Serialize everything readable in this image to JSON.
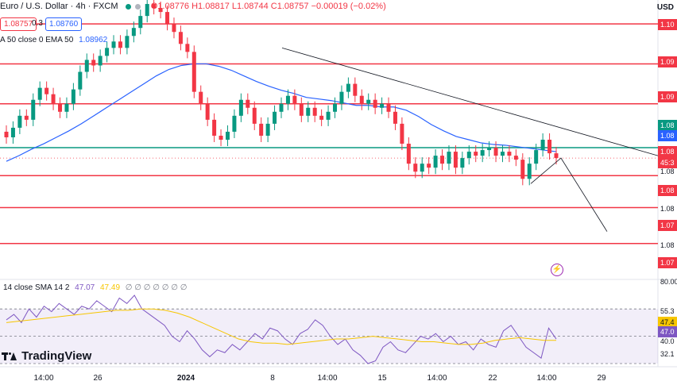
{
  "header": {
    "symbol": "Euro / U.S. Dollar · 4h · FXCM",
    "ohlc": "O1.08776 H1.08817 L1.08744 C1.08757 −0.00019 (−0.02%)",
    "bid": "1.08757",
    "spread": "0.3",
    "ask": "1.08760",
    "currency": "USD"
  },
  "ema_label": {
    "name": "A 50 close 0 EMA 50",
    "value": "1.08962"
  },
  "rsi_label": {
    "name": "14 close SMA 14 2",
    "rsi": "47.07",
    "sma": "47.49",
    "rest": "∅ ∅ ∅ ∅ ∅ ∅ ∅"
  },
  "price_axis": {
    "tags": [
      {
        "text": "1.10",
        "color": "#f23645",
        "line": true
      },
      {
        "text": "1.09",
        "color": "#f23645",
        "line": true
      },
      {
        "text": "1.09",
        "color": "#f23645",
        "line": true
      },
      {
        "text": "1.08",
        "color": "#089981",
        "line": true
      },
      {
        "text": "1.08",
        "color": "#2962ff",
        "line": false
      },
      {
        "text": "1.08",
        "color": "#f23645",
        "line": false
      },
      {
        "text": "1.08",
        "color": "#f23645",
        "line": true
      },
      {
        "text": "1.07",
        "color": "#f23645",
        "line": true
      },
      {
        "text": "1.07",
        "color": "#f23645",
        "line": true
      }
    ],
    "countdown": "45:3",
    "plain_ticks": [
      "1.08",
      "1.08",
      "1.08"
    ]
  },
  "rsi_axis": {
    "ticks": [
      "80.00",
      "55.3",
      "40.0",
      "32.1"
    ],
    "tags": [
      {
        "text": "47.4",
        "color": "#f7c600"
      },
      {
        "text": "47.0",
        "color": "#7e57c2"
      }
    ]
  },
  "x_axis": [
    "14:00",
    "26",
    "2024",
    "8",
    "14:00",
    "15",
    "14:00",
    "22",
    "14:00",
    "29"
  ],
  "brand": "TradingView",
  "colors": {
    "up": "#089981",
    "down": "#f23645",
    "ema": "#2962ff",
    "support": "#089981",
    "resistance": "#f23645",
    "rsi": "#7e57c2",
    "rsi_sma": "#f7c600"
  },
  "icons": [
    "lightning-icon",
    "tradingview-logo-icon"
  ],
  "chart_data": {
    "type": "candlestick",
    "title": "Euro / U.S. Dollar · 4h · FXCM",
    "ylim": [
      1.07,
      1.105
    ],
    "horizontal_levels": [
      1.102,
      1.097,
      1.092,
      1.0865,
      1.083,
      1.079,
      1.0745
    ],
    "green_level": 1.0865,
    "trendline": [
      [
        0.0,
        1.099
      ],
      [
        1.0,
        1.0855
      ]
    ],
    "forecast": [
      [
        0,
        1.082
      ],
      [
        1,
        1.0852
      ],
      [
        2,
        1.076
      ]
    ],
    "candles": [
      [
        1.0885,
        1.0878
      ],
      [
        1.0878,
        1.089
      ],
      [
        1.089,
        1.0905
      ],
      [
        1.0905,
        1.09
      ],
      [
        1.09,
        1.0925
      ],
      [
        1.0925,
        1.094
      ],
      [
        1.094,
        1.0932
      ],
      [
        1.0932,
        1.092
      ],
      [
        1.092,
        1.091
      ],
      [
        1.091,
        1.092
      ],
      [
        1.092,
        1.0938
      ],
      [
        1.0938,
        1.096
      ],
      [
        1.096,
        1.0975
      ],
      [
        1.0975,
        1.0968
      ],
      [
        1.0968,
        1.098
      ],
      [
        1.098,
        1.099
      ],
      [
        1.099,
        1.0998
      ],
      [
        1.0998,
        1.099
      ],
      [
        1.099,
        1.1005
      ],
      [
        1.1005,
        1.1015
      ],
      [
        1.1015,
        1.103
      ],
      [
        1.103,
        1.1045
      ],
      [
        1.1045,
        1.104
      ],
      [
        1.104,
        1.1035
      ],
      [
        1.1035,
        1.102
      ],
      [
        1.102,
        1.101
      ],
      [
        1.101,
        1.0995
      ],
      [
        1.0995,
        1.0985
      ],
      [
        1.0985,
        1.0935
      ],
      [
        1.0935,
        1.092
      ],
      [
        1.092,
        1.09
      ],
      [
        1.09,
        1.088
      ],
      [
        1.088,
        1.0875
      ],
      [
        1.0875,
        1.0885
      ],
      [
        1.0885,
        1.0905
      ],
      [
        1.0905,
        1.0925
      ],
      [
        1.0925,
        1.0915
      ],
      [
        1.0915,
        1.0895
      ],
      [
        1.0895,
        1.088
      ],
      [
        1.088,
        1.0895
      ],
      [
        1.0895,
        1.091
      ],
      [
        1.091,
        1.092
      ],
      [
        1.092,
        1.093
      ],
      [
        1.093,
        1.092
      ],
      [
        1.092,
        1.0905
      ],
      [
        1.0905,
        1.0915
      ],
      [
        1.0915,
        1.0905
      ],
      [
        1.0905,
        1.09
      ],
      [
        1.09,
        1.091
      ],
      [
        1.091,
        1.092
      ],
      [
        1.092,
        1.0935
      ],
      [
        1.0935,
        1.0945
      ],
      [
        1.0945,
        1.093
      ],
      [
        1.093,
        1.092
      ],
      [
        1.092,
        1.0925
      ],
      [
        1.0925,
        1.0915
      ],
      [
        1.0915,
        1.092
      ],
      [
        1.092,
        1.091
      ],
      [
        1.091,
        1.0895
      ],
      [
        1.0895,
        1.087
      ],
      [
        1.087,
        1.0845
      ],
      [
        1.0845,
        1.0835
      ],
      [
        1.0835,
        1.0845
      ],
      [
        1.0845,
        1.084
      ],
      [
        1.084,
        1.0855
      ],
      [
        1.0855,
        1.0845
      ],
      [
        1.0845,
        1.086
      ],
      [
        1.086,
        1.084
      ],
      [
        1.084,
        1.0852
      ],
      [
        1.0852,
        1.086
      ],
      [
        1.086,
        1.0855
      ],
      [
        1.0855,
        1.0862
      ],
      [
        1.0862,
        1.0865
      ],
      [
        1.0865,
        1.0855
      ],
      [
        1.0855,
        1.086
      ],
      [
        1.086,
        1.0855
      ],
      [
        1.0855,
        1.085
      ],
      [
        1.085,
        1.0826
      ],
      [
        1.0826,
        1.0845
      ],
      [
        1.0845,
        1.0862
      ],
      [
        1.0862,
        1.0875
      ],
      [
        1.0875,
        1.0858
      ],
      [
        1.0858,
        1.0852
      ]
    ],
    "ema50": [
      1.0848,
      1.0855,
      1.0863,
      1.087,
      1.0878,
      1.0886,
      1.0895,
      1.0905,
      1.0915,
      1.0925,
      1.0935,
      1.0945,
      1.0955,
      1.0963,
      1.0968,
      1.097,
      1.097,
      1.0967,
      1.0962,
      1.0955,
      1.0948,
      1.0942,
      1.0937,
      1.0933,
      1.0928,
      1.0926,
      1.0924,
      1.0921,
      1.0918,
      1.0918,
      1.0916,
      1.0916,
      1.0912,
      1.0904,
      1.0894,
      1.0886,
      1.0879,
      1.0875,
      1.0871,
      1.0869,
      1.0868,
      1.0866,
      1.0864,
      1.0862,
      1.086
    ],
    "rsi": [
      62,
      66,
      60,
      70,
      64,
      72,
      68,
      74,
      70,
      66,
      72,
      70,
      76,
      72,
      68,
      78,
      74,
      80,
      70,
      66,
      62,
      58,
      50,
      46,
      54,
      48,
      40,
      35,
      40,
      38,
      44,
      40,
      46,
      52,
      48,
      56,
      54,
      48,
      44,
      52,
      55,
      62,
      58,
      50,
      44,
      48,
      40,
      36,
      30,
      32,
      42,
      46,
      40,
      38,
      44,
      50,
      48,
      52,
      46,
      50,
      44,
      46,
      40,
      48,
      44,
      42,
      54,
      58,
      50,
      42,
      38,
      34,
      56,
      48
    ],
    "rsi_sma": [
      60,
      61,
      62,
      63,
      64,
      65,
      66,
      67,
      68,
      69,
      69,
      70,
      70,
      69,
      67,
      64,
      60,
      56,
      52,
      48,
      46,
      45,
      45,
      44,
      45,
      46,
      47,
      48,
      48,
      49,
      50,
      49,
      48,
      47,
      46,
      46,
      45,
      44,
      44,
      45,
      47,
      48,
      49,
      48,
      47,
      47
    ]
  }
}
